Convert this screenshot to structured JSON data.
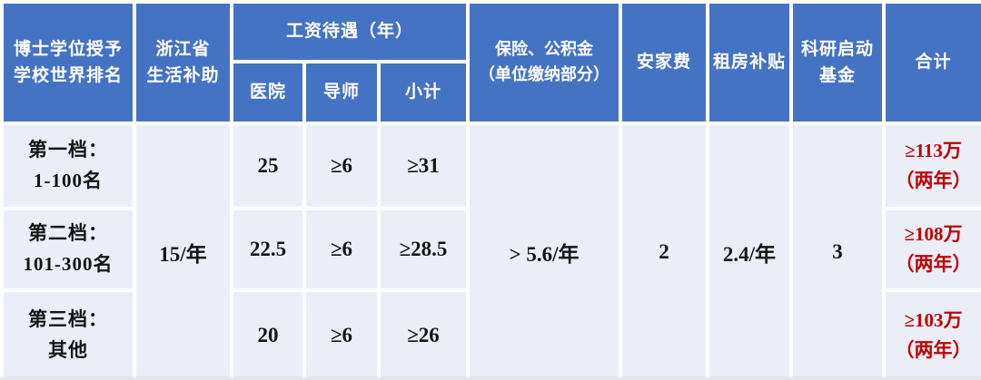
{
  "colors": {
    "header_bg": "#4573C4",
    "header_text": "#FFFFFF",
    "body_bg": "#ECEEF7",
    "body_text": "#141414",
    "total_text": "#C00000",
    "gap": "#FFFFFF"
  },
  "table": {
    "header": {
      "rank_label": "博士学位授予\n学校世界排名",
      "subsidy_label": "浙江省\n生活补助",
      "salary_group_label": "工资待遇（年）",
      "salary_sub": {
        "hospital": "医院",
        "supervisor": "导师",
        "subtotal": "小计"
      },
      "insurance_label": "保险、公积金\n（单位缴纳部分）",
      "settling_label": "安家费",
      "rent_label": "租房补贴",
      "research_label": "科研启动\n基金",
      "total_label": "合计"
    },
    "merged_values": {
      "subsidy": "15/年",
      "insurance": "> 5.6/年",
      "settling": "2",
      "rent": "2.4/年",
      "research": "3"
    },
    "rows": [
      {
        "tier": "第一档：\n1-100名",
        "hospital": "25",
        "supervisor": "≥6",
        "subtotal": "≥31",
        "total": "≥113万\n（两年）"
      },
      {
        "tier": "第二档：\n101-300名",
        "hospital": "22.5",
        "supervisor": "≥6",
        "subtotal": "≥28.5",
        "total": "≥108万\n（两年）"
      },
      {
        "tier": "第三档：\n其他",
        "hospital": "20",
        "supervisor": "≥6",
        "subtotal": "≥26",
        "total": "≥103万\n（两年）"
      }
    ]
  }
}
